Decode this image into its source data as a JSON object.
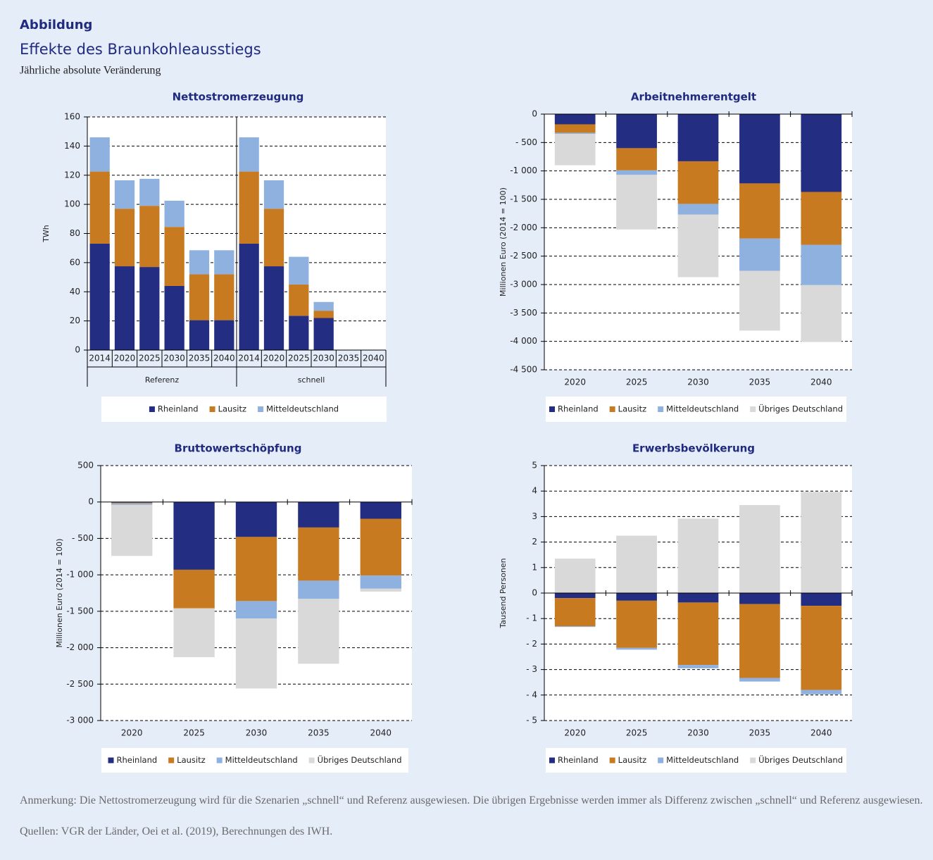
{
  "figure": {
    "label": "Abbildung",
    "title": "Effekte des Braunkohleausstiegs",
    "subtitle": "Jährliche absolute Veränderung",
    "note": "Anmerkung: Die Nettostromerzeugung wird für die Szenarien „schnell“ und Referenz ausgewiesen. Die übrigen Ergebnisse werden immer als Differenz zwischen „schnell“ und Referenz ausgewiesen.",
    "sources": "Quellen: VGR der Länder, Oei et al. (2019), Berechnungen des IWH."
  },
  "chart_data": [
    {
      "type": "bar",
      "stacked": true,
      "title": "Nettostromerzeugung",
      "ylabel": "TWh",
      "categories": [
        "2014",
        "2020",
        "2025",
        "2030",
        "2035",
        "2040",
        "2014",
        "2020",
        "2025",
        "2030",
        "2035",
        "2040"
      ],
      "groups": [
        "Referenz",
        "schnell"
      ],
      "series": [
        {
          "name": "Rheinland",
          "color": "#232d82",
          "values": [
            73,
            57.5,
            57,
            44,
            20.5,
            20.5,
            73,
            57.5,
            23.5,
            22,
            0,
            0
          ]
        },
        {
          "name": "Lausitz",
          "color": "#c87a20",
          "values": [
            49.5,
            39.5,
            42,
            40.5,
            31.5,
            31.5,
            49.5,
            39.5,
            21.5,
            5,
            0,
            0
          ]
        },
        {
          "name": "Mitteldeutschland",
          "color": "#8eb1e0",
          "values": [
            23.5,
            19.5,
            18.5,
            18,
            16.5,
            16.5,
            23.5,
            19.5,
            19,
            6,
            0,
            0
          ]
        }
      ],
      "ylim": [
        0,
        160
      ],
      "yticks": [
        0,
        20,
        40,
        60,
        80,
        100,
        120,
        140,
        160
      ],
      "grid": true
    },
    {
      "type": "bar",
      "stacked": true,
      "title": "Arbeitnehmerentgelt",
      "ylabel": "Millionen Euro (2014 = 100)",
      "categories": [
        "2020",
        "2025",
        "2030",
        "2035",
        "2040"
      ],
      "series": [
        {
          "name": "Rheinland",
          "color": "#232d82",
          "values": [
            -180,
            -600,
            -830,
            -1220,
            -1370
          ]
        },
        {
          "name": "Lausitz",
          "color": "#c87a20",
          "values": [
            -150,
            -390,
            -750,
            -970,
            -930
          ]
        },
        {
          "name": "Mitteldeutschland",
          "color": "#8eb1e0",
          "values": [
            -20,
            -80,
            -190,
            -570,
            -710
          ]
        },
        {
          "name": "Übriges Deutschland",
          "color": "#d9d9d9",
          "values": [
            -550,
            -960,
            -1100,
            -1050,
            -1000
          ]
        }
      ],
      "ylim": [
        -4500,
        0
      ],
      "yticks": [
        0,
        {
          "value": -500,
          "label": "- 500"
        },
        {
          "value": -1000,
          "label": "-1 000"
        },
        {
          "value": -1500,
          "label": "-1 500"
        },
        {
          "value": -2000,
          "label": "-2 000"
        },
        {
          "value": -2500,
          "label": "-2 500"
        },
        {
          "value": -3000,
          "label": "-3 000"
        },
        {
          "value": -3500,
          "label": "-3 500"
        },
        {
          "value": -4000,
          "label": "-4 000"
        },
        {
          "value": -4500,
          "label": "-4 500"
        }
      ],
      "grid": true
    },
    {
      "type": "bar",
      "stacked": true,
      "title": "Bruttowertschöpfung",
      "ylabel": "Millionen Euro (2014 = 100)",
      "categories": [
        "2020",
        "2025",
        "2030",
        "2035",
        "2040"
      ],
      "series": [
        {
          "name": "Rheinland",
          "color": "#232d82",
          "values": [
            -10,
            -930,
            -480,
            -350,
            -230
          ]
        },
        {
          "name": "Lausitz",
          "color": "#c87a20",
          "values": [
            -10,
            -530,
            -880,
            -730,
            -780
          ]
        },
        {
          "name": "Mitteldeutschland",
          "color": "#8eb1e0",
          "values": [
            -20,
            0,
            -240,
            -250,
            -180
          ]
        },
        {
          "name": "Übriges Deutschland",
          "color": "#d9d9d9",
          "values": [
            -700,
            -670,
            -960,
            -890,
            -40
          ]
        }
      ],
      "ylim": [
        -3000,
        500
      ],
      "yticks": [
        500,
        0,
        {
          "value": -500,
          "label": "- 500"
        },
        {
          "value": -1000,
          "label": "-1 000"
        },
        {
          "value": -1500,
          "label": "-1 500"
        },
        {
          "value": -2000,
          "label": "-2 000"
        },
        {
          "value": -2500,
          "label": "-2 500"
        },
        {
          "value": -3000,
          "label": "-3 000"
        }
      ],
      "grid": true
    },
    {
      "type": "bar",
      "stacked": true,
      "title": "Erwerbsbevölkerung",
      "ylabel": "Tausend Personen",
      "categories": [
        "2020",
        "2025",
        "2030",
        "2035",
        "2040"
      ],
      "series": [
        {
          "name": "Rheinland",
          "color": "#232d82",
          "values": [
            -0.2,
            -0.3,
            -0.37,
            -0.43,
            -0.5
          ]
        },
        {
          "name": "Lausitz",
          "color": "#c87a20",
          "values": [
            -1.1,
            -1.85,
            -2.45,
            -2.9,
            -3.3
          ]
        },
        {
          "name": "Mitteldeutschland",
          "color": "#8eb1e0",
          "values": [
            -0.03,
            -0.07,
            -0.13,
            -0.14,
            -0.17
          ]
        },
        {
          "name": "Übriges Deutschland",
          "color": "#d9d9d9",
          "values": [
            1.35,
            2.25,
            2.92,
            3.45,
            3.97
          ]
        }
      ],
      "ylim": [
        -5,
        5
      ],
      "yticks": [
        5,
        4,
        3,
        2,
        1,
        0,
        {
          "value": -1,
          "label": "- 1"
        },
        {
          "value": -2,
          "label": "- 2"
        },
        {
          "value": -3,
          "label": "- 3"
        },
        {
          "value": -4,
          "label": "- 4"
        },
        {
          "value": -5,
          "label": "- 5"
        }
      ],
      "grid": true
    }
  ]
}
